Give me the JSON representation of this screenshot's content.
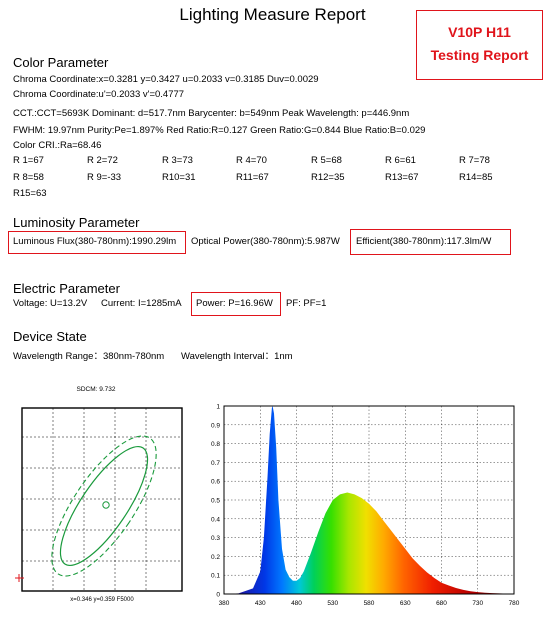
{
  "title": "Lighting Measure Report",
  "badge": {
    "line1": "V10P H11",
    "line2": "Testing Report",
    "color": "#e0141b"
  },
  "color_parameter": {
    "heading": "Color Parameter",
    "line1": "Chroma Coordinate:x=0.3281    y=0.3427    u=0.2033    v=0.3185    Duv=0.0029",
    "line2": "Chroma Coordinate:u'=0.2033    v'=0.4777",
    "line3": "CCT.:CCT=5693K   Dominant: d=517.7nm   Barycenter: b=549nm   Peak Wavelength: p=446.9nm",
    "line4": "FWHM: 19.97nm   Purity:Pe=1.897%   Red Ratio:R=0.127   Green Ratio:G=0.844   Blue Ratio:B=0.029",
    "cri": "Color CRI.:Ra=68.46",
    "r_values": [
      [
        "R 1=67",
        "R 2=72",
        "R 3=73",
        "R 4=70",
        "R 5=68",
        "R 6=61",
        "R 7=78"
      ],
      [
        "R 8=58",
        "R 9=-33",
        "R10=31",
        "R11=67",
        "R12=35",
        "R13=67",
        "R14=85"
      ],
      [
        "R15=63"
      ]
    ]
  },
  "luminosity": {
    "heading": "Luminosity Parameter",
    "flux": "Luminous Flux(380-780nm):1990.29lm",
    "optical_power": "Optical Power(380-780nm):5.987W",
    "efficient": "Efficient(380-780nm):117.3lm/W"
  },
  "electric": {
    "heading": "Electric Parameter",
    "voltage": "Voltage: U=13.2V",
    "current": "Current: I=1285mA",
    "power": "Power: P=16.96W",
    "pf": "PF: PF=1"
  },
  "device": {
    "heading": "Device State",
    "range": "Wavelength Range：380nm-780nm",
    "interval": "Wavelength Interval：1nm"
  },
  "sdcm": {
    "title": "SDCM: 9.732",
    "caption": "x=0.346 y=0.359 F5000"
  },
  "chart_data": {
    "type": "area",
    "xlabel": "",
    "ylabel": "",
    "xlim": [
      380,
      780
    ],
    "ylim": [
      0,
      1
    ],
    "x_ticks": [
      380,
      430,
      480,
      530,
      580,
      630,
      680,
      730,
      780
    ],
    "y_ticks": [
      "0",
      "0.1",
      "0.2",
      "0.3",
      "0.4",
      "0.5",
      "0.6",
      "0.7",
      "0.8",
      "0.9",
      "1"
    ],
    "fill": "spectral colors by wavelength",
    "series": [
      {
        "x": [
          380,
          400,
          420,
          430,
          435,
          440,
          443,
          446,
          447,
          449,
          452,
          455,
          460,
          465,
          470,
          475,
          480,
          485,
          490,
          500,
          510,
          520,
          530,
          540,
          550,
          560,
          570,
          580,
          590,
          600,
          610,
          620,
          630,
          640,
          650,
          660,
          670,
          680,
          690,
          700,
          710,
          720,
          730,
          740,
          750,
          760,
          770,
          780
        ],
        "values": [
          0,
          0.003,
          0.03,
          0.12,
          0.3,
          0.62,
          0.85,
          0.99,
          1.0,
          0.96,
          0.78,
          0.5,
          0.24,
          0.13,
          0.09,
          0.07,
          0.07,
          0.085,
          0.12,
          0.22,
          0.33,
          0.43,
          0.5,
          0.53,
          0.54,
          0.53,
          0.51,
          0.48,
          0.44,
          0.39,
          0.34,
          0.29,
          0.24,
          0.19,
          0.15,
          0.115,
          0.085,
          0.06,
          0.045,
          0.032,
          0.022,
          0.015,
          0.01,
          0.007,
          0.005,
          0.003,
          0.002,
          0.001
        ]
      }
    ]
  }
}
